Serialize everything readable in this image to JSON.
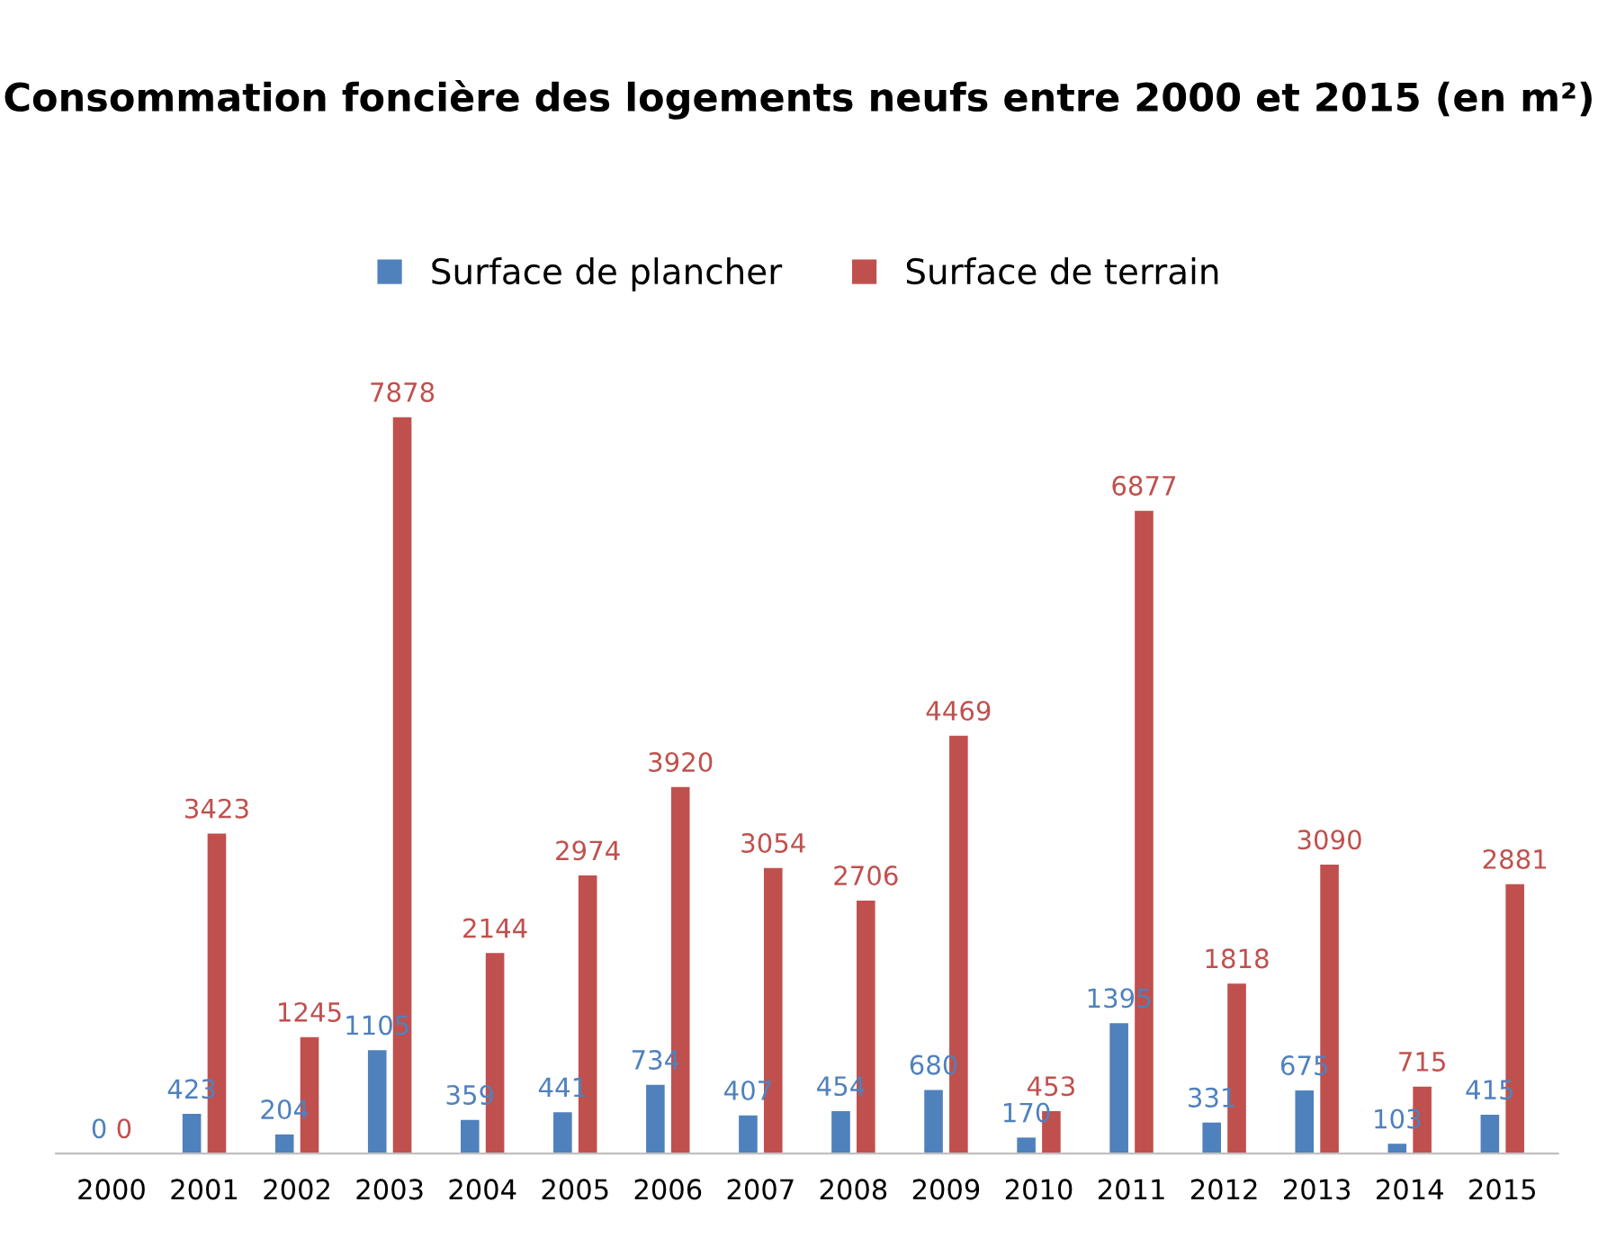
{
  "chart_data": {
    "type": "bar",
    "title": "Consommation foncière des logements neufs entre 2000 et 2015 (en m²)",
    "categories": [
      "2000",
      "2001",
      "2002",
      "2003",
      "2004",
      "2005",
      "2006",
      "2007",
      "2008",
      "2009",
      "2010",
      "2011",
      "2012",
      "2013",
      "2014",
      "2015"
    ],
    "series": [
      {
        "name": "Surface de plancher",
        "color": "#4f81bd",
        "values": [
          0,
          423,
          204,
          1105,
          359,
          441,
          734,
          407,
          454,
          680,
          170,
          1395,
          331,
          675,
          103,
          415
        ]
      },
      {
        "name": "Surface de terrain",
        "color": "#c0504d",
        "values": [
          0,
          3423,
          1245,
          7878,
          2144,
          2974,
          3920,
          3054,
          2706,
          4469,
          453,
          6877,
          1818,
          3090,
          715,
          2881
        ]
      }
    ],
    "data_labels": true,
    "legend": "top",
    "grid": false
  }
}
